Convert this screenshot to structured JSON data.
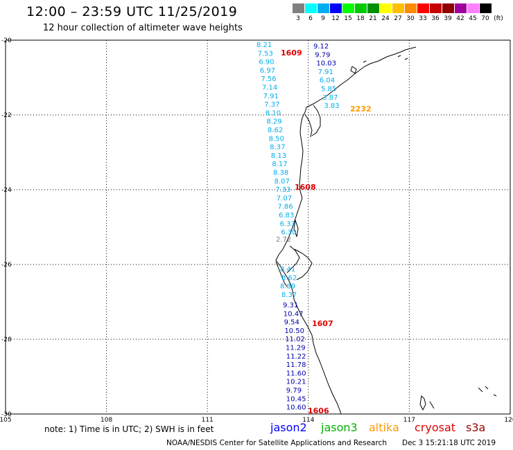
{
  "header": {
    "title": "12:00 – 23:59 UTC 11/25/2019",
    "subtitle": "12 hour collection of altimeter wave heights"
  },
  "legend": {
    "unit": "(ft)",
    "swatches": [
      {
        "color": "#808080",
        "label": "3"
      },
      {
        "color": "#00ffff",
        "label": "6"
      },
      {
        "color": "#00aeef",
        "label": "9"
      },
      {
        "color": "#0000ff",
        "label": "12"
      },
      {
        "color": "#00ff00",
        "label": "15"
      },
      {
        "color": "#00c800",
        "label": "18"
      },
      {
        "color": "#009000",
        "label": "21"
      },
      {
        "color": "#ffff00",
        "label": "24"
      },
      {
        "color": "#ffc000",
        "label": "27"
      },
      {
        "color": "#ff8c00",
        "label": "30"
      },
      {
        "color": "#ff0000",
        "label": "33"
      },
      {
        "color": "#c80000",
        "label": "36"
      },
      {
        "color": "#900000",
        "label": "39"
      },
      {
        "color": "#a000a0",
        "label": "42"
      },
      {
        "color": "#ff80ff",
        "label": "45"
      },
      {
        "color": "#000000",
        "label": "70"
      }
    ]
  },
  "axes": {
    "lon_labels": [
      "105",
      "108",
      "111",
      "114",
      "117",
      "120"
    ],
    "lat_labels": [
      "-20",
      "-22",
      "-24",
      "-26",
      "-28",
      "-30"
    ]
  },
  "tracks": {
    "track_a": {
      "color": "#00aeef",
      "values": [
        "8.21",
        "7.53",
        "6.90",
        "6.97",
        "7.56",
        "7.14",
        "7.91",
        "7.37",
        "8.10",
        "8.29",
        "8.62",
        "8.50",
        "8.37",
        "8.13",
        "8.17",
        "8.38",
        "8.07",
        "7.33",
        "7.07",
        "7.86",
        "6.83",
        "6.33",
        "6.30"
      ],
      "after": [
        {
          "value": "2.72",
          "color": "#808080"
        }
      ],
      "south": [
        "8.41",
        "8.62",
        "8.89",
        "8.37"
      ]
    },
    "track_b_north": {
      "color_dark": "#0000aa",
      "color_light": "#00aeef",
      "values": [
        {
          "value": "9.12",
          "shade": "dark"
        },
        {
          "value": "9.79",
          "shade": "dark"
        },
        {
          "value": "10.03",
          "shade": "dark"
        },
        {
          "value": "7.91",
          "shade": "light"
        },
        {
          "value": "6.04",
          "shade": "light"
        },
        {
          "value": "5.85",
          "shade": "light"
        },
        {
          "value": "3.87",
          "shade": "light"
        },
        {
          "value": "3.83",
          "shade": "light"
        }
      ]
    },
    "track_c": {
      "color": "#0000aa",
      "values": [
        "9.31",
        "10.47",
        "9.54",
        "10.50",
        "11.02",
        "11.29",
        "11.22",
        "11.78",
        "11.60",
        "10.21",
        "9.79",
        "10.45",
        "10.60"
      ]
    }
  },
  "time_labels": [
    {
      "value": "1609",
      "color": "#dd0000"
    },
    {
      "value": "2232",
      "color": "#ff9900"
    },
    {
      "value": "1608",
      "color": "#dd0000"
    },
    {
      "value": "1607",
      "color": "#dd0000"
    },
    {
      "value": "1606",
      "color": "#dd0000"
    }
  ],
  "footer": {
    "note": "note: 1) Time is in UTC; 2) SWH is in feet",
    "satellites": [
      {
        "name": "jason2",
        "color": "#0000ff"
      },
      {
        "name": "jason3",
        "color": "#00b000"
      },
      {
        "name": "altika",
        "color": "#ff9900"
      },
      {
        "name": "cryosat",
        "color": "#dd0000"
      },
      {
        "name": "s3a",
        "color": "#990000"
      }
    ],
    "credit": "NOAA/NESDIS Center for Satellite Applications and Research",
    "timestamp": "Dec  3 15:21:18 UTC 2019"
  }
}
